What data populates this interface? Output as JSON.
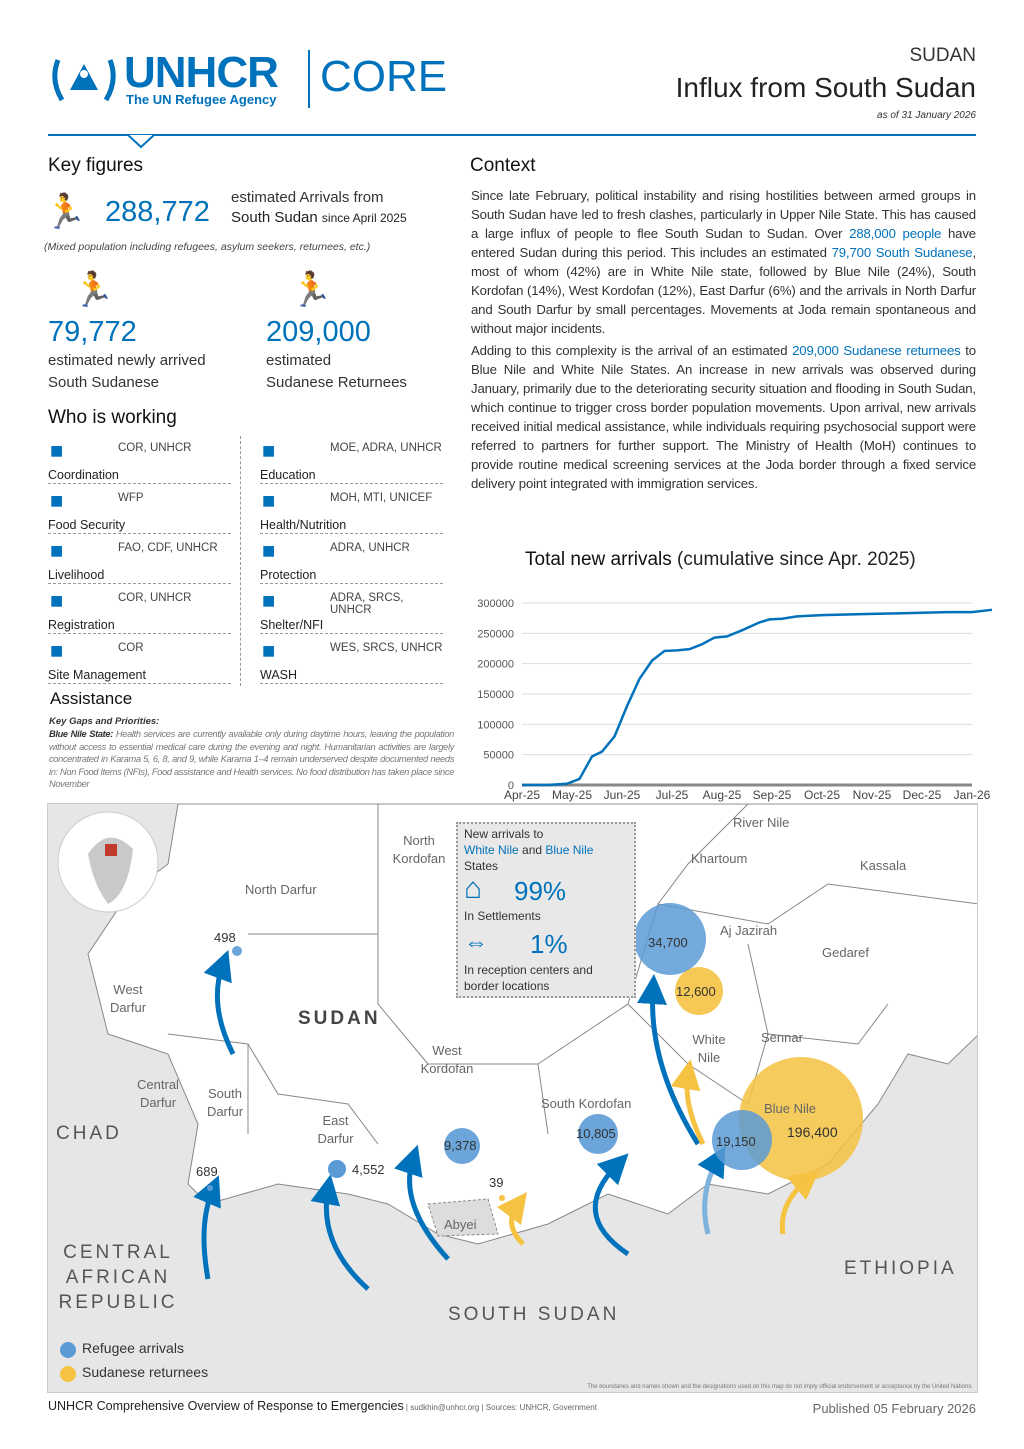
{
  "header": {
    "logo_main": "UNHCR",
    "logo_sub": "The UN Refugee Agency",
    "logo_product": "CORE",
    "country": "SUDAN",
    "title": "Influx from South Sudan",
    "date": "as of 31 January 2026"
  },
  "key_figures": {
    "title": "Key figures",
    "total_value": "288,772",
    "total_label1": "estimated Arrivals from",
    "total_label2": "South Sudan",
    "total_label3": "since April 2025",
    "total_note": "(Mixed population including refugees, asylum seekers, returnees, etc.)",
    "refugees_value": "79,772",
    "refugees_label1": "estimated newly arrived",
    "refugees_label2": "South Sudanese",
    "returnees_value": "209,000",
    "returnees_label1": "estimated",
    "returnees_label2": "Sudanese Returnees"
  },
  "who": {
    "title": "Who is working",
    "items": [
      {
        "label": "Coordination",
        "orgs": "COR, UNHCR",
        "icon": "coordination-icon"
      },
      {
        "label": "Education",
        "orgs": "MOE, ADRA, UNHCR",
        "icon": "education-icon"
      },
      {
        "label": "Food Security",
        "orgs": "WFP",
        "icon": "food-icon"
      },
      {
        "label": "Health/Nutrition",
        "orgs": "MOH, MTI, UNICEF",
        "icon": "health-icon"
      },
      {
        "label": "Livelihood",
        "orgs": "FAO, CDF, UNHCR",
        "icon": "livelihood-icon"
      },
      {
        "label": "Protection",
        "orgs": "ADRA, UNHCR",
        "icon": "protection-icon"
      },
      {
        "label": "Registration",
        "orgs": "COR, UNHCR",
        "icon": "registration-icon"
      },
      {
        "label": "Shelter/NFI",
        "orgs": "ADRA, SRCS, UNHCR",
        "icon": "shelter-icon"
      },
      {
        "label": "Site Management",
        "orgs": "COR",
        "icon": "site-icon"
      },
      {
        "label": "WASH",
        "orgs": "WES, SRCS, UNHCR",
        "icon": "wash-icon"
      }
    ]
  },
  "assistance": {
    "title": "Assistance",
    "subtitle": "Key Gaps and Priorities:",
    "state": "Blue Nile State:",
    "text": "Health services are currently available only during daytime hours, leaving the population without access to essential medical care during the evening and night. Humanitarian activities are largely concentrated in Karama 5, 6, 8, and 9, while Karama 1–4 remain underserved despite documented needs in: Non Food Items (NFIs), Food assistance and Health services. No food distribution has taken place since November"
  },
  "context": {
    "title": "Context",
    "p1a": "Since late February, political instability and rising hostilities between armed groups in South Sudan have led to fresh clashes, particularly in Upper Nile State. This has caused a large influx of people to flee South Sudan to Sudan. Over ",
    "p1b": "288,000 people",
    "p1c": " have entered Sudan during this period. This includes an estimated ",
    "p1d": "79,700 South Sudanese",
    "p1e": ", most of whom (42%) are in White Nile state, followed by Blue Nile (24%), South Kordofan (14%), West Kordofan (12%), East Darfur (6%) and the arrivals in North Darfur and South Darfur by small percentages. Movements at Joda remain spontaneous and without major incidents.",
    "p2a": "Adding to this complexity is the arrival of an estimated ",
    "p2b": "209,000 Sudanese returnees",
    "p2c": " to Blue Nile and White Nile States. An increase in new arrivals was observed during January, primarily due to the deteriorating security situation and flooding in South Sudan, which continue to trigger cross border population movements. Upon arrival, new arrivals received initial medical assistance, while individuals requiring psychosocial support were referred to partners for further support. The Ministry of Health (MoH) continues to provide routine medical screening services at the Joda border through a fixed service delivery point integrated with immigration services."
  },
  "chart_data": {
    "type": "line",
    "title_bold": "Total  new arrivals",
    "title_rest": " (cumulative since Apr. 2025)",
    "xlabel": "",
    "ylabel": "",
    "ylim": [
      0,
      300000
    ],
    "yticks": [
      "0",
      "50000",
      "100000",
      "150000",
      "200000",
      "250000",
      "300000"
    ],
    "categories": [
      "Apr-25",
      "May-25",
      "Jun-25",
      "Jul-25",
      "Aug-25",
      "Sep-25",
      "Oct-25",
      "Nov-25",
      "Dec-25",
      "Jan-26"
    ],
    "series": [
      {
        "name": "Total new arrivals",
        "color": "#0072bc",
        "points": [
          [
            0,
            0
          ],
          [
            0.5,
            0
          ],
          [
            0.9,
            2000
          ],
          [
            1.15,
            10000
          ],
          [
            1.4,
            47000
          ],
          [
            1.6,
            55000
          ],
          [
            1.85,
            80000
          ],
          [
            2.1,
            130000
          ],
          [
            2.35,
            175000
          ],
          [
            2.6,
            205000
          ],
          [
            2.85,
            221000
          ],
          [
            3.1,
            222000
          ],
          [
            3.35,
            224000
          ],
          [
            3.6,
            232000
          ],
          [
            3.85,
            243000
          ],
          [
            4.1,
            245000
          ],
          [
            4.4,
            255000
          ],
          [
            4.75,
            268000
          ],
          [
            4.95,
            273000
          ],
          [
            5.2,
            274000
          ],
          [
            5.5,
            278000
          ],
          [
            6,
            280000
          ],
          [
            6.5,
            281000
          ],
          [
            7,
            282000
          ],
          [
            7.5,
            283000
          ],
          [
            8,
            284000
          ],
          [
            8.5,
            285000
          ],
          [
            9,
            285000
          ],
          [
            9.4,
            288772
          ]
        ]
      }
    ]
  },
  "map": {
    "inset": {
      "title": "New arrivals to",
      "wn": "White Nile",
      "and": " and ",
      "bn": "Blue Nile",
      "states": "States",
      "pct1": "99%",
      "lab1": "In Settlements",
      "pct2": "1%",
      "lab2": "In reception centers and border locations"
    },
    "regions": [
      "North Kordofan",
      "River Nile",
      "Khartoum",
      "Kassala",
      "North Darfur",
      "Aj Jazirah",
      "Gedaref",
      "West Darfur",
      "White Nile",
      "Sennar",
      "West Kordofan",
      "Central Darfur",
      "South Darfur",
      "South Kordofan",
      "Blue Nile",
      "East Darfur",
      "Abyei"
    ],
    "countries": [
      "SUDAN",
      "CHAD",
      "CENTRAL AFRICAN REPUBLIC",
      "SOUTH SUDAN",
      "ETHIOPIA"
    ],
    "values": [
      "498",
      "689",
      "4,552",
      "9,378",
      "10,805",
      "34,700",
      "19,150",
      "12,600",
      "196,400",
      "39"
    ],
    "legend": {
      "refugee": "Refugee arrivals",
      "returnee": "Sudanese returnees"
    },
    "disclaimer": "The boundaries and names shown and the designations used on this map do not imply official endorsement or acceptance by the United Nations.",
    "colors": {
      "refugee": "#5b9bd5",
      "returnee": "#f5c242",
      "land": "#e6e6e6",
      "sudan": "#ffffff"
    }
  },
  "footer": {
    "left": "UNHCR Comprehensive Overview of Response to Emergencies",
    "contact": " | sudkhin@unhcr.org | Sources: UNHCR, Government",
    "published": "Published 05 February 2026"
  }
}
